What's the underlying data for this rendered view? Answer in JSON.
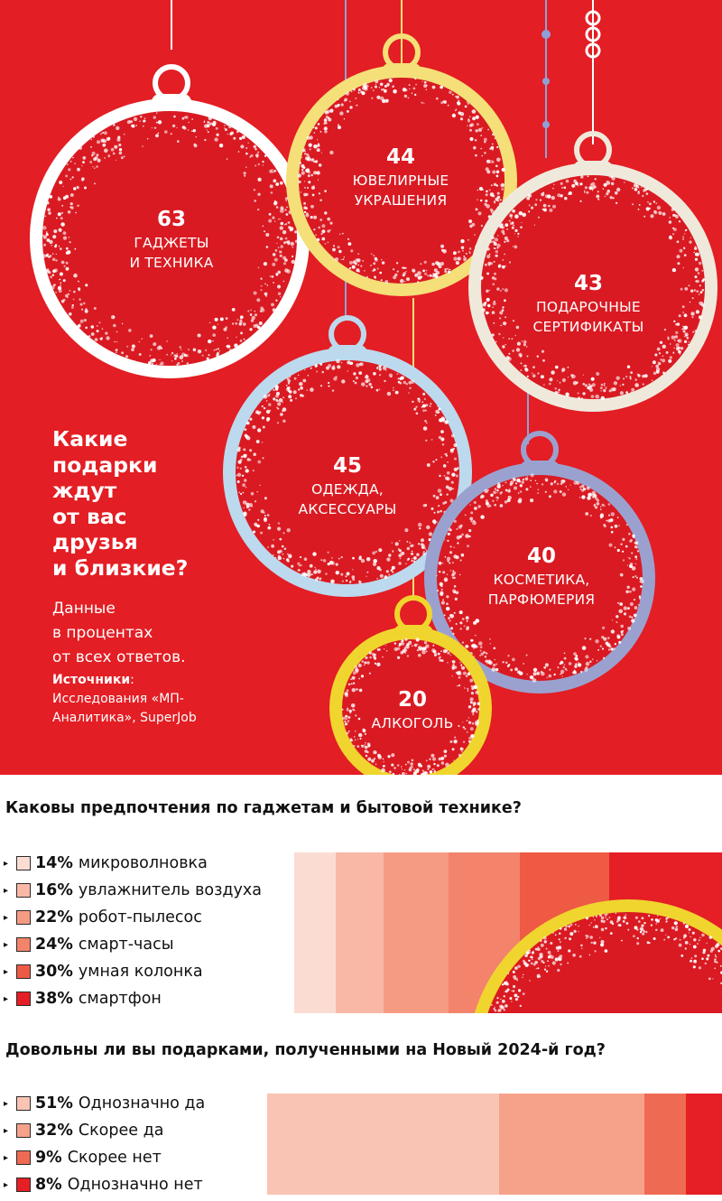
{
  "colors": {
    "background": "#e31e24",
    "ball_red": "#d91a22",
    "white_ring": "#ffffff",
    "yellow_ring": "#f4df78",
    "cream_ring": "#efe9dc",
    "blue_ring": "#bcd9ee",
    "purple_ring": "#9ba1cf",
    "gold_ring": "#f0d52e"
  },
  "infographic": {
    "question": "Какие\nподарки\nждут\nот вас\nдрузья\nи близкие?",
    "data_note": "Данные\nв процентах\nот всех ответов.",
    "sources_label": "Источники",
    "sources_text": "Исследования «МП-\nАналитика», SuperJob",
    "balls": [
      {
        "value": "63",
        "label": "ГАДЖЕТЫ\nИ ТЕХНИКА"
      },
      {
        "value": "44",
        "label": "ЮВЕЛИРНЫЕ\nУКРАШЕНИЯ"
      },
      {
        "value": "43",
        "label": "ПОДАРОЧНЫЕ\nСЕРТИФИКАТЫ"
      },
      {
        "value": "45",
        "label": "ОДЕЖДА,\nАКСЕССУАРЫ"
      },
      {
        "value": "40",
        "label": "КОСМЕТИКА,\nПАРФЮМЕРИЯ"
      },
      {
        "value": "20",
        "label": "АЛКОГОЛЬ"
      }
    ]
  },
  "chart_data": [
    {
      "type": "bar",
      "title": "",
      "categories": [
        "ГАДЖЕТЫ И ТЕХНИКА",
        "ЮВЕЛИРНЫЕ УКРАШЕНИЯ",
        "ПОДАРОЧНЫЕ СЕРТИФИКАТЫ",
        "ОДЕЖДА, АКСЕССУАРЫ",
        "КОСМЕТИКА, ПАРФЮМЕРИЯ",
        "АЛКОГОЛЬ"
      ],
      "values": [
        63,
        44,
        43,
        45,
        40,
        20
      ]
    },
    {
      "type": "bar",
      "stacked": true,
      "title": "Каковы предпочтения по гаджетам и бытовой технике?",
      "categories": [
        "микроволновка",
        "увлажнитель воздуха",
        "робот-пылесос",
        "смарт-часы",
        "умная колонка",
        "смартфон"
      ],
      "values": [
        14,
        16,
        22,
        24,
        30,
        38
      ],
      "labels": [
        "14%",
        "16%",
        "22%",
        "24%",
        "30%",
        "38%"
      ],
      "colors": [
        "#fbdcd2",
        "#f9b8a5",
        "#f69b83",
        "#f3836b",
        "#ee5a44",
        "#e51f25"
      ]
    },
    {
      "type": "bar",
      "stacked": true,
      "title": "Довольны ли вы подарками, полученными на Новый 2024-й год?",
      "categories": [
        "Однозначно да",
        "Скорее да",
        "Скорее нет",
        "Однозначно нет"
      ],
      "values": [
        51,
        32,
        9,
        8
      ],
      "labels": [
        "51%",
        "32%",
        "9%",
        "8%"
      ],
      "colors": [
        "#f9c4b4",
        "#f6a28a",
        "#ef6a52",
        "#e51f25"
      ]
    }
  ]
}
